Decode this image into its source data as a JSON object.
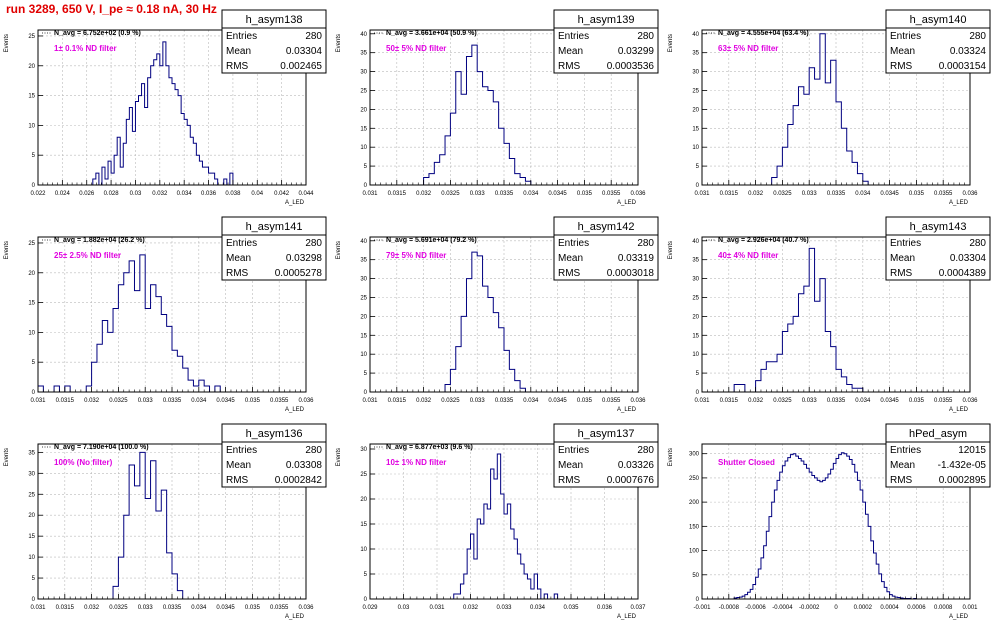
{
  "title": "run 3289,   650 V, I_pe ≈ 0.18 nA,  30 Hz",
  "colors": {
    "title": "#e00000",
    "histogram": "#000080",
    "annotation": "#e000e0",
    "grid": "#bbbbbb",
    "frame": "#000000"
  },
  "stat_labels": {
    "entries": "Entries",
    "mean": "Mean",
    "rms": "RMS"
  },
  "chart_data": [
    {
      "type": "histogram",
      "name": "h_asym138",
      "navg": "N_avg = 6.752e+02 (0.9 %)",
      "note": "1± 0.1% ND filter",
      "stats": {
        "entries": "280",
        "mean": "0.03304",
        "rms": "0.002465"
      },
      "ylabel": "Events",
      "xlabel": "A_LED",
      "xlim": [
        0.022,
        0.044
      ],
      "ylim": [
        0,
        26
      ],
      "xticks": [
        0.022,
        0.024,
        0.026,
        0.028,
        0.03,
        0.032,
        0.034,
        0.036,
        0.038,
        0.04,
        0.042,
        0.044
      ],
      "xtick_labels": [
        "0.022",
        "0.024",
        "0.026",
        "0.028",
        "0.03",
        "0.032",
        "0.034",
        "0.036",
        "0.038",
        "0.04",
        "0.042",
        "0.044"
      ],
      "yticks": [
        0,
        5,
        10,
        15,
        20,
        25
      ],
      "ytick_labels": [
        "0",
        "5",
        "10",
        "15",
        "20",
        "25"
      ],
      "bin_start": 0.0265,
      "bin_width": 0.00025,
      "counts": [
        1,
        2,
        0,
        3,
        1,
        4,
        2,
        5,
        8,
        3,
        7,
        11,
        13,
        9,
        14,
        15,
        17,
        13,
        18,
        20,
        21,
        22,
        20,
        24,
        20,
        18,
        17,
        16,
        15,
        12,
        11,
        10,
        8,
        7,
        5,
        4,
        3,
        3,
        2,
        2,
        1,
        0,
        0,
        1,
        0,
        2
      ]
    },
    {
      "type": "histogram",
      "name": "h_asym139",
      "navg": "N_avg = 3.661e+04 (50.9 %)",
      "note": "50± 5% ND filter",
      "stats": {
        "entries": "280",
        "mean": "0.03299",
        "rms": "0.0003536"
      },
      "ylabel": "Events",
      "xlabel": "A_LED",
      "xlim": [
        0.031,
        0.036
      ],
      "ylim": [
        0,
        41
      ],
      "xticks": [
        0.031,
        0.0315,
        0.032,
        0.0325,
        0.033,
        0.0335,
        0.034,
        0.0345,
        0.035,
        0.0355,
        0.036
      ],
      "xtick_labels": [
        "0.031",
        "0.0315",
        "0.032",
        "0.0325",
        "0.033",
        "0.0335",
        "0.034",
        "0.0345",
        "0.035",
        "0.0355",
        "0.036"
      ],
      "yticks": [
        0,
        5,
        10,
        15,
        20,
        25,
        30,
        35,
        40
      ],
      "ytick_labels": [
        "0",
        "5",
        "10",
        "15",
        "20",
        "25",
        "30",
        "35",
        "40"
      ],
      "bin_start": 0.032,
      "bin_width": 0.0001,
      "counts": [
        2,
        3,
        6,
        8,
        13,
        19,
        30,
        24,
        34,
        37,
        30,
        26,
        25,
        22,
        15,
        11,
        7,
        3,
        2,
        1
      ]
    },
    {
      "type": "histogram",
      "name": "h_asym140",
      "navg": "N_avg = 4.555e+04 (63.4 %)",
      "note": "63± 5% ND filter",
      "stats": {
        "entries": "280",
        "mean": "0.03324",
        "rms": "0.0003154"
      },
      "ylabel": "Events",
      "xlabel": "A_LED",
      "xlim": [
        0.031,
        0.036
      ],
      "ylim": [
        0,
        41
      ],
      "xticks": [
        0.031,
        0.0315,
        0.032,
        0.0325,
        0.033,
        0.0335,
        0.034,
        0.0345,
        0.035,
        0.0355,
        0.036
      ],
      "xtick_labels": [
        "0.031",
        "0.0315",
        "0.032",
        "0.0325",
        "0.033",
        "0.0335",
        "0.034",
        "0.0345",
        "0.035",
        "0.0355",
        "0.036"
      ],
      "yticks": [
        0,
        5,
        10,
        15,
        20,
        25,
        30,
        35,
        40
      ],
      "ytick_labels": [
        "0",
        "5",
        "10",
        "15",
        "20",
        "25",
        "30",
        "35",
        "40"
      ],
      "bin_start": 0.0323,
      "bin_width": 0.0001,
      "counts": [
        2,
        5,
        10,
        16,
        21,
        26,
        24,
        31,
        28,
        40,
        27,
        33,
        22,
        15,
        9,
        6,
        3,
        1
      ]
    },
    {
      "type": "histogram",
      "name": "h_asym141",
      "navg": "N_avg = 1.882e+04 (26.2 %)",
      "note": "25± 2.5% ND filter",
      "stats": {
        "entries": "280",
        "mean": "0.03298",
        "rms": "0.0005278"
      },
      "ylabel": "Events",
      "xlabel": "A_LED",
      "xlim": [
        0.031,
        0.036
      ],
      "ylim": [
        0,
        26
      ],
      "xticks": [
        0.031,
        0.0315,
        0.032,
        0.0325,
        0.033,
        0.0335,
        0.034,
        0.0345,
        0.035,
        0.0355,
        0.036
      ],
      "xtick_labels": [
        "0.031",
        "0.0315",
        "0.032",
        "0.0325",
        "0.033",
        "0.0335",
        "0.034",
        "0.0345",
        "0.035",
        "0.0355",
        "0.036"
      ],
      "yticks": [
        0,
        5,
        10,
        15,
        20,
        25
      ],
      "ytick_labels": [
        "0",
        "5",
        "10",
        "15",
        "20",
        "25"
      ],
      "bin_start": 0.031,
      "bin_width": 0.0001,
      "counts": [
        1,
        0,
        0,
        1,
        0,
        1,
        0,
        0,
        0,
        1,
        5,
        8,
        12,
        10,
        14,
        18,
        20,
        22,
        17,
        23,
        14,
        18,
        16,
        13,
        11,
        7,
        6,
        4,
        2,
        1,
        2,
        1,
        0,
        1
      ]
    },
    {
      "type": "histogram",
      "name": "h_asym142",
      "navg": "N_avg = 5.691e+04 (79.2 %)",
      "note": "79± 5% ND filter",
      "stats": {
        "entries": "280",
        "mean": "0.03319",
        "rms": "0.0003018"
      },
      "ylabel": "Events",
      "xlabel": "A_LED",
      "xlim": [
        0.031,
        0.036
      ],
      "ylim": [
        0,
        41
      ],
      "xticks": [
        0.031,
        0.0315,
        0.032,
        0.0325,
        0.033,
        0.0335,
        0.034,
        0.0345,
        0.035,
        0.0355,
        0.036
      ],
      "xtick_labels": [
        "0.031",
        "0.0315",
        "0.032",
        "0.0325",
        "0.033",
        "0.0335",
        "0.034",
        "0.0345",
        "0.035",
        "0.0355",
        "0.036"
      ],
      "yticks": [
        0,
        5,
        10,
        15,
        20,
        25,
        30,
        35,
        40
      ],
      "ytick_labels": [
        "0",
        "5",
        "10",
        "15",
        "20",
        "25",
        "30",
        "35",
        "40"
      ],
      "bin_start": 0.0324,
      "bin_width": 0.0001,
      "counts": [
        2,
        6,
        12,
        20,
        30,
        37,
        36,
        28,
        25,
        21,
        17,
        11,
        6,
        3,
        1
      ]
    },
    {
      "type": "histogram",
      "name": "h_asym143",
      "navg": "N_avg = 2.926e+04 (40.7 %)",
      "note": "40± 4% ND filter",
      "stats": {
        "entries": "280",
        "mean": "0.03304",
        "rms": "0.0004389"
      },
      "ylabel": "Events",
      "xlabel": "A_LED",
      "xlim": [
        0.031,
        0.036
      ],
      "ylim": [
        0,
        41
      ],
      "xticks": [
        0.031,
        0.0315,
        0.032,
        0.0325,
        0.033,
        0.0335,
        0.034,
        0.0345,
        0.035,
        0.0355,
        0.036
      ],
      "xtick_labels": [
        "0.031",
        "0.0315",
        "0.032",
        "0.0325",
        "0.033",
        "0.0335",
        "0.034",
        "0.0345",
        "0.035",
        "0.0355",
        "0.036"
      ],
      "yticks": [
        0,
        5,
        10,
        15,
        20,
        25,
        30,
        35,
        40
      ],
      "ytick_labels": [
        "0",
        "5",
        "10",
        "15",
        "20",
        "25",
        "30",
        "35",
        "40"
      ],
      "bin_start": 0.0316,
      "bin_width": 0.0001,
      "counts": [
        2,
        2,
        0,
        0,
        3,
        6,
        8,
        8,
        10,
        16,
        18,
        20,
        26,
        28,
        38,
        24,
        30,
        16,
        12,
        6,
        4,
        2,
        1,
        1
      ]
    },
    {
      "type": "histogram",
      "name": "h_asym136",
      "navg": "N_avg = 7.190e+04 (100.0 %)",
      "note": "100% (No filter)",
      "stats": {
        "entries": "280",
        "mean": "0.03308",
        "rms": "0.0002842"
      },
      "ylabel": "Events",
      "xlabel": "A_LED",
      "xlim": [
        0.031,
        0.036
      ],
      "ylim": [
        0,
        37
      ],
      "xticks": [
        0.031,
        0.0315,
        0.032,
        0.0325,
        0.033,
        0.0335,
        0.034,
        0.0345,
        0.035,
        0.0355,
        0.036
      ],
      "xtick_labels": [
        "0.031",
        "0.0315",
        "0.032",
        "0.0325",
        "0.033",
        "0.0335",
        "0.034",
        "0.0345",
        "0.035",
        "0.0355",
        "0.036"
      ],
      "yticks": [
        0,
        5,
        10,
        15,
        20,
        25,
        30,
        35
      ],
      "ytick_labels": [
        "0",
        "5",
        "10",
        "15",
        "20",
        "25",
        "30",
        "35"
      ],
      "bin_start": 0.0324,
      "bin_width": 0.0001,
      "counts": [
        3,
        10,
        20,
        32,
        27,
        35,
        24,
        33,
        21,
        26,
        11,
        6,
        2
      ]
    },
    {
      "type": "histogram",
      "name": "h_asym137",
      "navg": "N_avg = 6.877e+03 (9.6 %)",
      "note": "10± 1% ND filter",
      "stats": {
        "entries": "280",
        "mean": "0.03326",
        "rms": "0.0007676"
      },
      "ylabel": "Events",
      "xlabel": "A_LED",
      "xlim": [
        0.029,
        0.037
      ],
      "ylim": [
        0,
        31
      ],
      "xticks": [
        0.029,
        0.03,
        0.031,
        0.032,
        0.033,
        0.034,
        0.035,
        0.036,
        0.037
      ],
      "xtick_labels": [
        "0.029",
        "0.03",
        "0.031",
        "0.032",
        "0.033",
        "0.034",
        "0.035",
        "0.036",
        "0.037"
      ],
      "yticks": [
        0,
        5,
        10,
        15,
        20,
        25,
        30
      ],
      "ytick_labels": [
        "0",
        "5",
        "10",
        "15",
        "20",
        "25",
        "30"
      ],
      "bin_start": 0.0315,
      "bin_width": 0.0001,
      "counts": [
        1,
        1,
        3,
        5,
        10,
        13,
        8,
        16,
        15,
        19,
        18,
        26,
        24,
        29,
        21,
        17,
        19,
        14,
        12,
        9,
        7,
        5,
        4,
        2,
        5,
        2,
        0,
        1,
        0,
        0,
        1
      ]
    },
    {
      "type": "histogram",
      "name": "hPed_asym",
      "navg": "",
      "note": "Shutter Closed",
      "stats": {
        "entries": "12015",
        "mean": "-1.432e-05",
        "rms": "0.0002895"
      },
      "ylabel": "Events",
      "xlabel": "A_LED",
      "xlim": [
        -0.001,
        0.001
      ],
      "ylim": [
        0,
        320
      ],
      "xticks": [
        -0.001,
        -0.0008,
        -0.0006,
        -0.0004,
        -0.0002,
        0,
        0.0002,
        0.0004,
        0.0006,
        0.0008,
        0.001
      ],
      "xtick_labels": [
        "-0.001",
        "-0.0008",
        "-0.0006",
        "-0.0004",
        "-0.0002",
        "0",
        "0.0002",
        "0.0004",
        "0.0006",
        "0.0008",
        "0.001"
      ],
      "yticks": [
        0,
        50,
        100,
        150,
        200,
        250,
        300
      ],
      "ytick_labels": [
        "0",
        "50",
        "100",
        "150",
        "200",
        "250",
        "300"
      ],
      "bin_start": -0.00076,
      "bin_width": 2e-05,
      "counts": [
        2,
        3,
        4,
        6,
        9,
        14,
        20,
        30,
        45,
        62,
        85,
        110,
        140,
        170,
        200,
        225,
        245,
        262,
        275,
        285,
        292,
        298,
        300,
        295,
        290,
        285,
        278,
        270,
        262,
        255,
        250,
        245,
        242,
        245,
        250,
        258,
        268,
        280,
        290,
        298,
        302,
        300,
        295,
        288,
        278,
        262,
        245,
        225,
        200,
        175,
        150,
        120,
        95,
        72,
        52,
        36,
        24,
        15,
        9,
        6,
        4,
        3,
        2,
        1,
        1,
        1,
        0,
        1
      ]
    }
  ]
}
